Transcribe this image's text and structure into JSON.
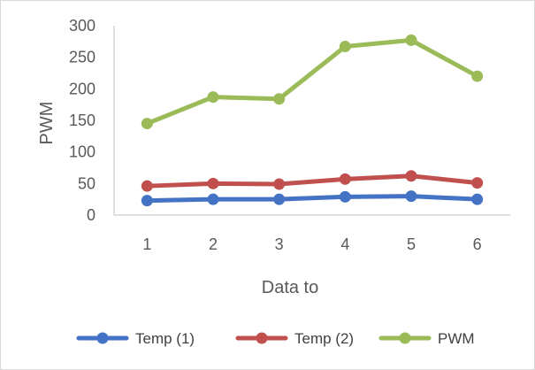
{
  "chart_data": {
    "type": "line",
    "title": "",
    "xlabel": "Data to",
    "ylabel": "PWM",
    "categories": [
      "1",
      "2",
      "3",
      "4",
      "5",
      "6"
    ],
    "ylim": [
      0,
      300
    ],
    "yticks": [
      "0",
      "50",
      "100",
      "150",
      "200",
      "250",
      "300"
    ],
    "ytick_values": [
      0,
      50,
      100,
      150,
      200,
      250,
      300
    ],
    "grid": false,
    "legend_position": "bottom",
    "series": [
      {
        "name": "Temp (1)",
        "color": "#4472C4",
        "values": [
          23,
          25,
          25,
          29,
          30,
          25
        ]
      },
      {
        "name": "Temp (2)",
        "color": "#C0504D",
        "values": [
          46,
          50,
          49,
          57,
          62,
          51
        ]
      },
      {
        "name": "PWM",
        "color": "#9BBB59",
        "values": [
          145,
          187,
          184,
          267,
          277,
          220
        ]
      }
    ]
  }
}
